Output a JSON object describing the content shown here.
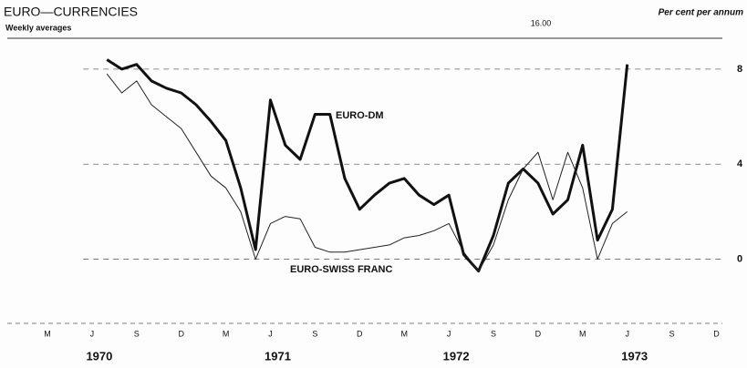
{
  "chart_data": {
    "type": "line",
    "title": "EURO—CURRENCIES",
    "subtitle": "Weekly averages",
    "y_axis_label": "Per cent per annum",
    "annotation": "16.00",
    "categories": [
      null,
      null,
      "M",
      null,
      null,
      "J",
      null,
      null,
      "S",
      null,
      null,
      "D",
      null,
      null,
      "M",
      null,
      null,
      "J",
      null,
      null,
      "S",
      null,
      null,
      "D",
      null,
      null,
      "M",
      null,
      null,
      "J",
      null,
      null,
      "S",
      null,
      null,
      "D",
      null,
      null,
      "M",
      null,
      null,
      "J",
      null,
      null,
      "S",
      null,
      null,
      "D"
    ],
    "year_labels": [
      "1970",
      "1971",
      "1972",
      "1973"
    ],
    "series": [
      {
        "name": "EURO-DM",
        "color": "#111111",
        "width": 3,
        "values": [
          null,
          null,
          null,
          null,
          null,
          null,
          8.4,
          8.0,
          8.2,
          7.5,
          7.2,
          7.0,
          6.5,
          5.8,
          5.0,
          3.0,
          0.4,
          6.7,
          4.8,
          4.2,
          6.1,
          6.1,
          3.4,
          2.1,
          2.7,
          3.2,
          3.4,
          2.7,
          2.3,
          2.7,
          0.2,
          -0.5,
          1.0,
          3.2,
          3.8,
          3.2,
          1.9,
          2.5,
          4.8,
          0.8,
          2.1,
          8.2,
          null,
          null,
          null,
          null,
          null,
          null
        ]
      },
      {
        "name": "EURO-SWISS FRANC",
        "color": "#222222",
        "width": 1,
        "values": [
          null,
          null,
          null,
          null,
          null,
          null,
          7.8,
          7.0,
          7.5,
          6.5,
          6.0,
          5.5,
          4.5,
          3.5,
          3.0,
          2.0,
          0.0,
          1.5,
          1.8,
          1.7,
          0.5,
          0.3,
          0.3,
          0.4,
          0.5,
          0.6,
          0.9,
          1.0,
          1.2,
          1.5,
          0.3,
          -0.5,
          0.6,
          2.5,
          3.8,
          4.5,
          2.5,
          4.5,
          3.0,
          0.0,
          1.5,
          2.0,
          null,
          null,
          null,
          null,
          null,
          null
        ]
      }
    ],
    "ylim": [
      -2.7,
      9.3
    ],
    "yticks": [
      0,
      4,
      8
    ],
    "grid": true
  }
}
